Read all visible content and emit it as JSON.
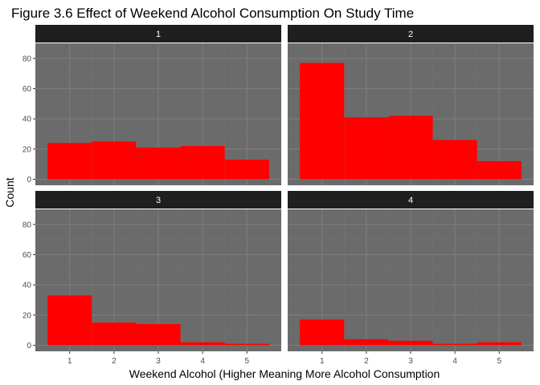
{
  "chart_data": {
    "type": "bar",
    "title": "Figure 3.6 Effect of Weekend Alcohol Consumption On Study Time",
    "xlabel": "Weekend Alcohol (Higher Meaning More Alcohol Consumption",
    "ylabel": "Count",
    "ylim": [
      0,
      90
    ],
    "yticks": [
      0,
      20,
      40,
      60,
      80
    ],
    "xticks": [
      1,
      2,
      3,
      4,
      5
    ],
    "grid": true,
    "colors": {
      "bar": "#ff0000",
      "panel_bg": "#6b6b6b",
      "strip_bg": "#1f1f1f",
      "strip_text": "#ffffff",
      "grid_major": "#7d7d7d",
      "grid_minor": "#737373",
      "axis_text": "#4d4d4d"
    },
    "facets": [
      {
        "label": "1",
        "categories": [
          1,
          2,
          3,
          4,
          5
        ],
        "values": [
          24,
          25,
          21,
          22,
          13
        ]
      },
      {
        "label": "2",
        "categories": [
          1,
          2,
          3,
          4,
          5
        ],
        "values": [
          77,
          41,
          42,
          26,
          12
        ]
      },
      {
        "label": "3",
        "categories": [
          1,
          2,
          3,
          4,
          5
        ],
        "values": [
          33,
          15,
          14,
          2,
          1
        ]
      },
      {
        "label": "4",
        "categories": [
          1,
          2,
          3,
          4,
          5
        ],
        "values": [
          17,
          4,
          3,
          1,
          2
        ]
      }
    ]
  }
}
